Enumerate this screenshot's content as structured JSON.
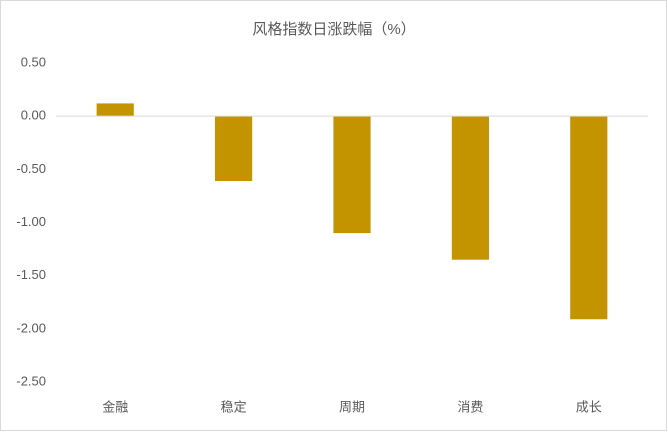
{
  "chart_data": {
    "type": "bar",
    "title": "风格指数日涨跌幅（%）",
    "categories": [
      "金融",
      "稳定",
      "周期",
      "消费",
      "成长"
    ],
    "values": [
      0.12,
      -0.61,
      -1.1,
      -1.35,
      -1.91
    ],
    "color": "#c49300",
    "ylim": [
      -2.5,
      0.5
    ],
    "yticks": [
      {
        "value": 0.5,
        "label": "0.50"
      },
      {
        "value": 0,
        "label": "0.00"
      },
      {
        "value": -0.5,
        "label": "-0.50"
      },
      {
        "value": -1,
        "label": "-1.00"
      },
      {
        "value": -1.5,
        "label": "-1.50"
      },
      {
        "value": -2,
        "label": "-2.00"
      },
      {
        "value": -2.5,
        "label": "-2.50"
      }
    ],
    "grid": false
  }
}
